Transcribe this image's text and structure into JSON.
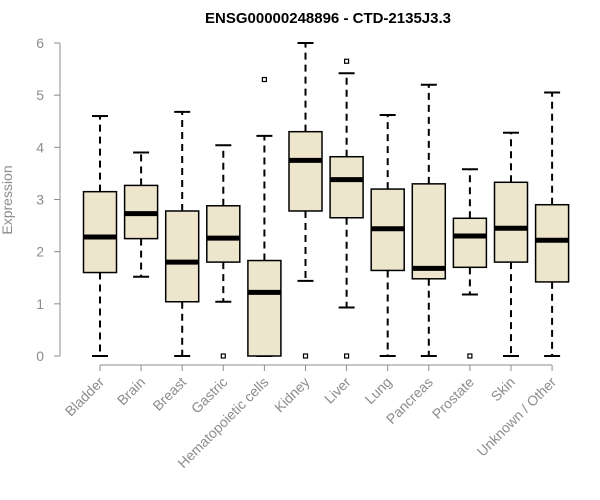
{
  "chart_data": {
    "type": "boxplot",
    "title": "ENSG00000248896 - CTD-2135J3.3",
    "ylabel": "Expression",
    "xlabel": "",
    "ylim": [
      0,
      6
    ],
    "yticks": [
      0,
      1,
      2,
      3,
      4,
      5,
      6
    ],
    "grid": false,
    "colors": {
      "box_fill": "#ede6cc",
      "axis": "#8c8c8c"
    },
    "categories": [
      "Bladder",
      "Brain",
      "Breast",
      "Gastric",
      "Hematopoietic cells",
      "Kidney",
      "Liver",
      "Lung",
      "Pancreas",
      "Prostate",
      "Skin",
      "Unknown / Other"
    ],
    "boxes": [
      {
        "min": 0,
        "q1": 1.6,
        "median": 2.28,
        "q3": 3.15,
        "max": 4.6,
        "outliers": []
      },
      {
        "min": 1.52,
        "q1": 2.25,
        "median": 2.73,
        "q3": 3.27,
        "max": 3.9,
        "outliers": []
      },
      {
        "min": 0,
        "q1": 1.04,
        "median": 1.8,
        "q3": 2.78,
        "max": 4.68,
        "outliers": []
      },
      {
        "min": 1.04,
        "q1": 1.8,
        "median": 2.26,
        "q3": 2.88,
        "max": 4.04,
        "outliers": [
          0
        ]
      },
      {
        "min": 0,
        "q1": 0,
        "median": 1.22,
        "q3": 1.83,
        "max": 4.22,
        "outliers": [
          5.3
        ]
      },
      {
        "min": 1.44,
        "q1": 2.78,
        "median": 3.75,
        "q3": 4.3,
        "max": 6.0,
        "outliers": [
          0
        ]
      },
      {
        "min": 0.93,
        "q1": 2.65,
        "median": 3.38,
        "q3": 3.82,
        "max": 5.42,
        "outliers": [
          0,
          5.65
        ]
      },
      {
        "min": 0,
        "q1": 1.64,
        "median": 2.44,
        "q3": 3.2,
        "max": 4.62,
        "outliers": []
      },
      {
        "min": 0,
        "q1": 1.48,
        "median": 1.68,
        "q3": 3.3,
        "max": 5.2,
        "outliers": []
      },
      {
        "min": 1.18,
        "q1": 1.7,
        "median": 2.3,
        "q3": 2.64,
        "max": 3.58,
        "outliers": [
          0
        ]
      },
      {
        "min": 0,
        "q1": 1.8,
        "median": 2.45,
        "q3": 3.33,
        "max": 4.28,
        "outliers": []
      },
      {
        "min": 0,
        "q1": 1.42,
        "median": 2.22,
        "q3": 2.9,
        "max": 5.05,
        "outliers": []
      }
    ]
  }
}
